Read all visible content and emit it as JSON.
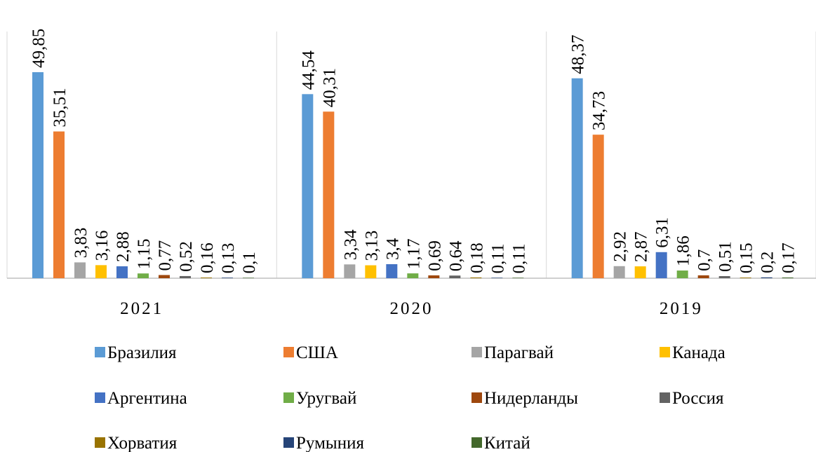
{
  "chart_data": {
    "type": "bar",
    "categories": [
      "2021",
      "2020",
      "2019"
    ],
    "series": [
      {
        "name": "Бразилия",
        "color": "#5b9bd5",
        "values": [
          49.85,
          44.54,
          48.37
        ],
        "value_labels": [
          "49,85",
          "44,54",
          "48,37"
        ]
      },
      {
        "name": "США",
        "color": "#ed7d31",
        "values": [
          35.51,
          40.31,
          34.73
        ],
        "value_labels": [
          "35,51",
          "40,31",
          "34,73"
        ]
      },
      {
        "name": "Парагвай",
        "color": "#a5a5a5",
        "values": [
          3.83,
          3.34,
          2.92
        ],
        "value_labels": [
          "3,83",
          "3,34",
          "2,92"
        ]
      },
      {
        "name": "Канада",
        "color": "#ffc000",
        "values": [
          3.16,
          3.13,
          2.87
        ],
        "value_labels": [
          "3,16",
          "3,13",
          "2,87"
        ]
      },
      {
        "name": "Аргентина",
        "color": "#4472c4",
        "values": [
          2.88,
          3.4,
          6.31
        ],
        "value_labels": [
          "2,88",
          "3,4",
          "6,31"
        ]
      },
      {
        "name": "Уругвай",
        "color": "#70ad47",
        "values": [
          1.15,
          1.17,
          1.86
        ],
        "value_labels": [
          "1,15",
          "1,17",
          "1,86"
        ]
      },
      {
        "name": "Нидерланды",
        "color": "#9e480e",
        "values": [
          0.77,
          0.69,
          0.7
        ],
        "value_labels": [
          "0,77",
          "0,69",
          "0,7"
        ]
      },
      {
        "name": "Россия",
        "color": "#636363",
        "values": [
          0.52,
          0.64,
          0.51
        ],
        "value_labels": [
          "0,52",
          "0,64",
          "0,51"
        ]
      },
      {
        "name": "Хорватия",
        "color": "#997300",
        "values": [
          0.16,
          0.18,
          0.15
        ],
        "value_labels": [
          "0,16",
          "0,18",
          "0,15"
        ]
      },
      {
        "name": "Румыния",
        "color": "#264478",
        "values": [
          0.13,
          0.11,
          0.2
        ],
        "value_labels": [
          "0,13",
          "0,11",
          "0,2"
        ]
      },
      {
        "name": "Китай",
        "color": "#43682b",
        "values": [
          0.1,
          0.11,
          0.17
        ],
        "value_labels": [
          "0,1",
          "0,11",
          "0,17"
        ]
      }
    ],
    "legend": "bottom"
  }
}
